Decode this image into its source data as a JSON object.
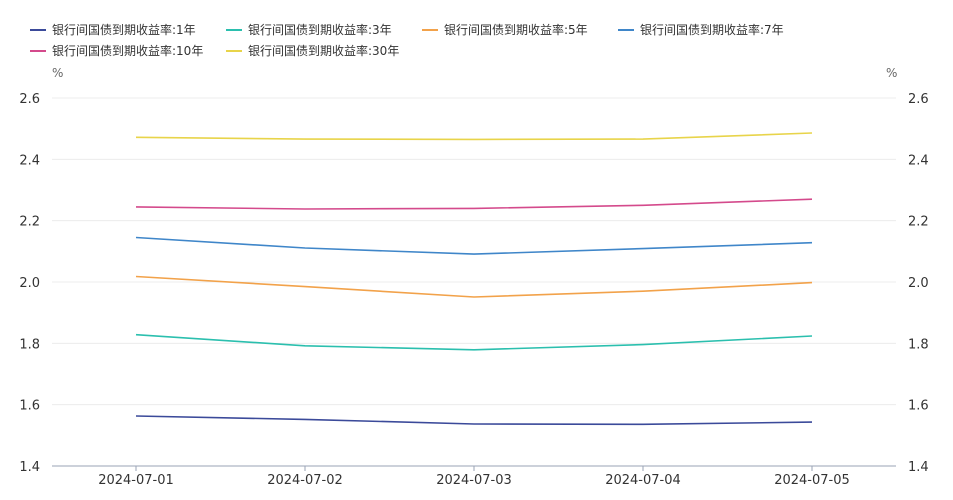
{
  "chart_data": {
    "type": "line",
    "title": "",
    "x": [
      "2024-07-01",
      "2024-07-02",
      "2024-07-03",
      "2024-07-04",
      "2024-07-05"
    ],
    "ylim": [
      1.4,
      2.6
    ],
    "yticks": [
      "1.4",
      "1.6",
      "1.8",
      "2.0",
      "2.2",
      "2.4",
      "2.6"
    ],
    "y_unit_left": "%",
    "y_unit_right": "%",
    "grid": true,
    "legend_position": "top-left",
    "series": [
      {
        "name": "银行间国债到期收益率:1年",
        "color": "#3b4a9a",
        "values": [
          1.563,
          1.552,
          1.537,
          1.536,
          1.543
        ]
      },
      {
        "name": "银行间国债到期收益率:3年",
        "color": "#2bbfae",
        "values": [
          1.828,
          1.792,
          1.779,
          1.796,
          1.824
        ]
      },
      {
        "name": "银行间国债到期收益率:5年",
        "color": "#f2a24a",
        "values": [
          2.018,
          1.985,
          1.951,
          1.97,
          1.998
        ]
      },
      {
        "name": "银行间国债到期收益率:7年",
        "color": "#3f86c9",
        "values": [
          2.145,
          2.111,
          2.091,
          2.109,
          2.128
        ]
      },
      {
        "name": "银行间国债到期收益率:10年",
        "color": "#d44a8c",
        "values": [
          2.245,
          2.238,
          2.24,
          2.25,
          2.27
        ]
      },
      {
        "name": "银行间国债到期收益率:30年",
        "color": "#e8d44a",
        "values": [
          2.472,
          2.466,
          2.465,
          2.466,
          2.486
        ]
      }
    ]
  }
}
